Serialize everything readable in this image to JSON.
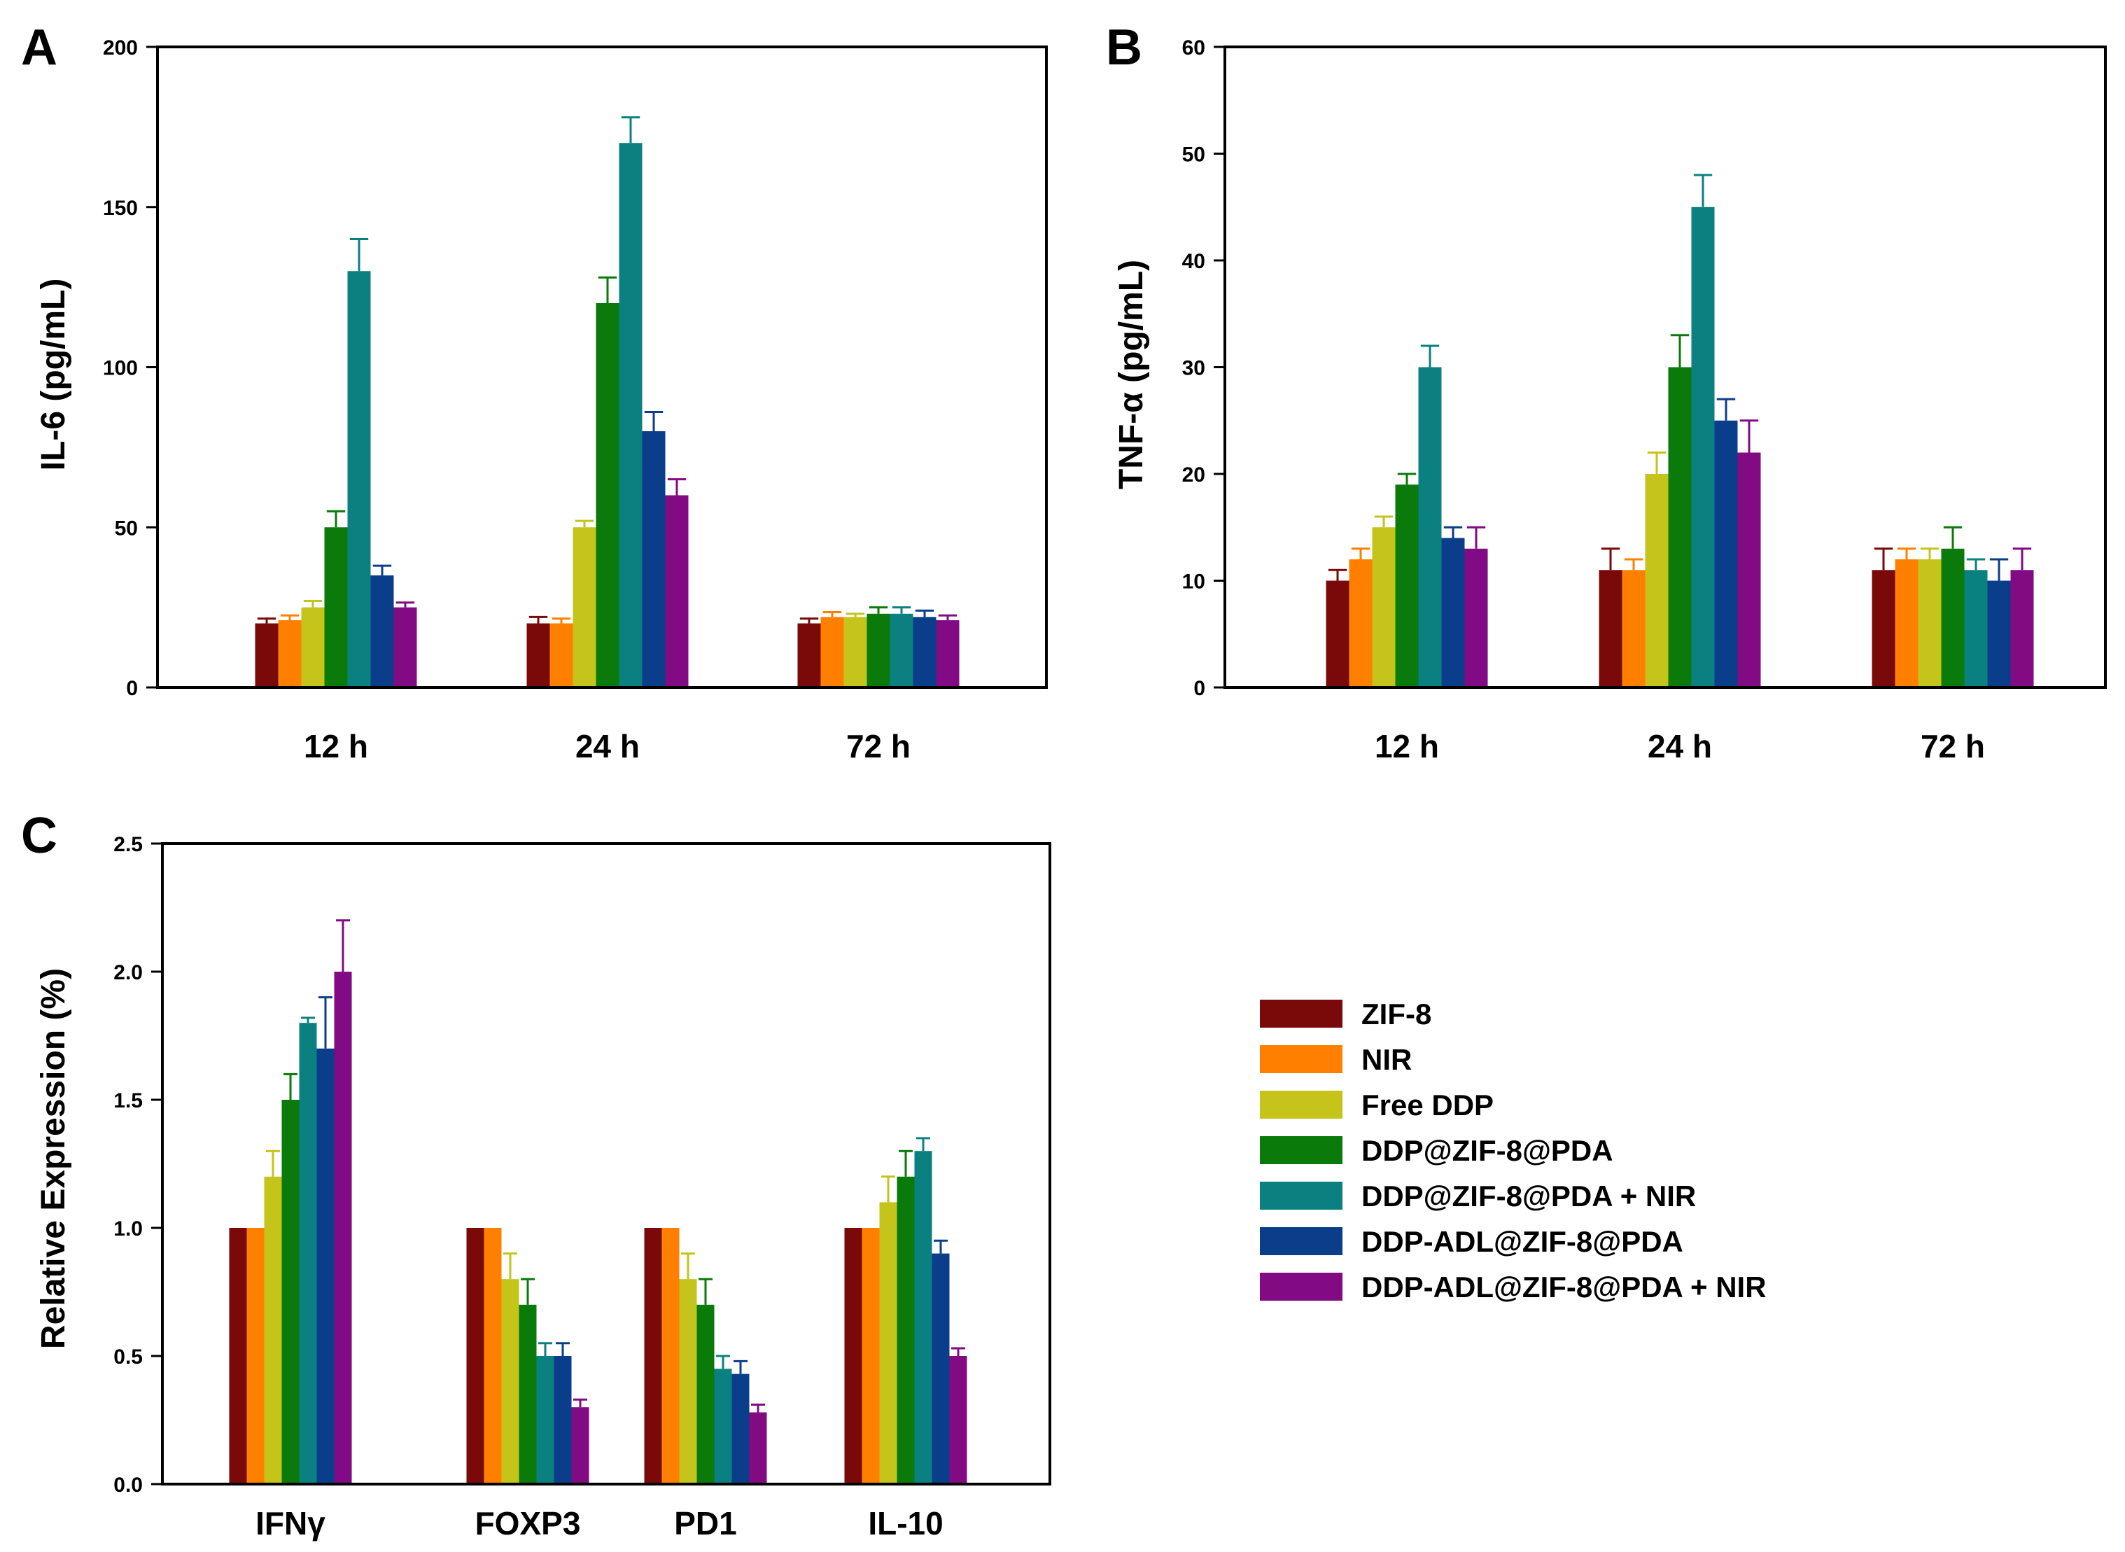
{
  "colors": [
    "#7a0a0a",
    "#ff8000",
    "#c4c41a",
    "#0a7a0a",
    "#0a8080",
    "#0a3e8a",
    "#820a82"
  ],
  "legend": {
    "items": [
      "ZIF-8",
      "NIR",
      "Free DDP",
      "DDP@ZIF-8@PDA",
      "DDP@ZIF-8@PDA + NIR",
      "DDP-ADL@ZIF-8@PDA",
      "DDP-ADL@ZIF-8@PDA + NIR"
    ]
  },
  "chart_data": [
    {
      "id": "A",
      "panel_label": "A",
      "type": "bar",
      "title": "",
      "xlabel": "",
      "ylabel": "IL-6 (pg/mL)",
      "ylim": [
        0,
        200
      ],
      "yticks": [
        0,
        50,
        100,
        150,
        200
      ],
      "ytick_labels": [
        "0",
        "50",
        "100",
        "150",
        "200"
      ],
      "categories": [
        "12 h",
        "24 h",
        "72 h"
      ],
      "series": [
        {
          "name": "ZIF-8",
          "values": [
            20,
            20,
            20
          ],
          "errors": [
            1.5,
            2,
            1.5
          ]
        },
        {
          "name": "NIR",
          "values": [
            21,
            20,
            22
          ],
          "errors": [
            1.5,
            1.5,
            1.5
          ]
        },
        {
          "name": "Free DDP",
          "values": [
            25,
            50,
            22
          ],
          "errors": [
            2,
            2,
            1
          ]
        },
        {
          "name": "DDP@ZIF-8@PDA",
          "values": [
            50,
            120,
            23
          ],
          "errors": [
            5,
            8,
            2
          ]
        },
        {
          "name": "DDP@ZIF-8@PDA + NIR",
          "values": [
            130,
            170,
            23
          ],
          "errors": [
            10,
            8,
            2
          ]
        },
        {
          "name": "DDP-ADL@ZIF-8@PDA",
          "values": [
            35,
            80,
            22
          ],
          "errors": [
            3,
            6,
            2
          ]
        },
        {
          "name": "DDP-ADL@ZIF-8@PDA + NIR",
          "values": [
            25,
            60,
            21
          ],
          "errors": [
            1.5,
            5,
            1.5
          ]
        }
      ]
    },
    {
      "id": "B",
      "panel_label": "B",
      "type": "bar",
      "title": "",
      "xlabel": "",
      "ylabel": "TNF-α (pg/mL)",
      "ylim": [
        0,
        60
      ],
      "yticks": [
        0,
        10,
        20,
        30,
        40,
        50,
        60
      ],
      "ytick_labels": [
        "0",
        "10",
        "20",
        "30",
        "40",
        "50",
        "60"
      ],
      "categories": [
        "12 h",
        "24 h",
        "72 h"
      ],
      "series": [
        {
          "name": "ZIF-8",
          "values": [
            10,
            11,
            11
          ],
          "errors": [
            1,
            2,
            2
          ]
        },
        {
          "name": "NIR",
          "values": [
            12,
            11,
            12
          ],
          "errors": [
            1,
            1,
            1
          ]
        },
        {
          "name": "Free DDP",
          "values": [
            15,
            20,
            12
          ],
          "errors": [
            1,
            2,
            1
          ]
        },
        {
          "name": "DDP@ZIF-8@PDA",
          "values": [
            19,
            30,
            13
          ],
          "errors": [
            1,
            3,
            2
          ]
        },
        {
          "name": "DDP@ZIF-8@PDA + NIR",
          "values": [
            30,
            45,
            11
          ],
          "errors": [
            2,
            3,
            1
          ]
        },
        {
          "name": "DDP-ADL@ZIF-8@PDA",
          "values": [
            14,
            25,
            10
          ],
          "errors": [
            1,
            2,
            2
          ]
        },
        {
          "name": "DDP-ADL@ZIF-8@PDA + NIR",
          "values": [
            13,
            22,
            11
          ],
          "errors": [
            2,
            3,
            2
          ]
        }
      ]
    },
    {
      "id": "C",
      "panel_label": "C",
      "type": "bar",
      "title": "",
      "xlabel": "",
      "ylabel": "Relative Expression (%)",
      "ylim": [
        0,
        2.5
      ],
      "yticks": [
        0,
        0.5,
        1.0,
        1.5,
        2.0,
        2.5
      ],
      "ytick_labels": [
        "0.0",
        "0.5",
        "1.0",
        "1.5",
        "2.0",
        "2.5"
      ],
      "categories": [
        "IFNγ",
        "FOXP3",
        "PD1",
        "IL-10"
      ],
      "series": [
        {
          "name": "ZIF-8",
          "values": [
            1.0,
            1.0,
            1.0,
            1.0
          ],
          "errors": [
            0,
            0,
            0,
            0
          ]
        },
        {
          "name": "NIR",
          "values": [
            1.0,
            1.0,
            1.0,
            1.0
          ],
          "errors": [
            0,
            0,
            0,
            0
          ]
        },
        {
          "name": "Free DDP",
          "values": [
            1.2,
            0.8,
            0.8,
            1.1
          ],
          "errors": [
            0.1,
            0.1,
            0.1,
            0.1
          ]
        },
        {
          "name": "DDP@ZIF-8@PDA",
          "values": [
            1.5,
            0.7,
            0.7,
            1.2
          ],
          "errors": [
            0.1,
            0.1,
            0.1,
            0.1
          ]
        },
        {
          "name": "DDP@ZIF-8@PDA + NIR",
          "values": [
            1.8,
            0.5,
            0.45,
            1.3
          ],
          "errors": [
            0.02,
            0.05,
            0.05,
            0.05
          ]
        },
        {
          "name": "DDP-ADL@ZIF-8@PDA",
          "values": [
            1.7,
            0.5,
            0.43,
            0.9
          ],
          "errors": [
            0.2,
            0.05,
            0.05,
            0.05
          ]
        },
        {
          "name": "DDP-ADL@ZIF-8@PDA + NIR",
          "values": [
            2.0,
            0.3,
            0.28,
            0.5
          ],
          "errors": [
            0.2,
            0.03,
            0.03,
            0.03
          ]
        }
      ]
    }
  ]
}
